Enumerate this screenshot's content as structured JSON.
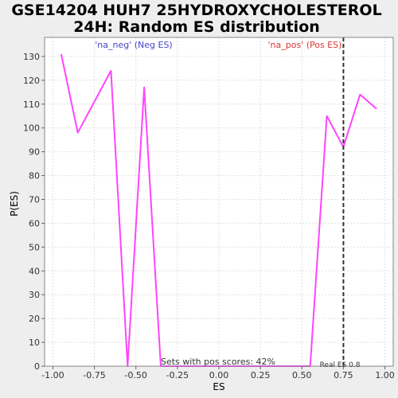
{
  "chart_data": {
    "type": "line",
    "title_line1": "GSE14204 HUH7 25HYDROXYCHOLESTEROL",
    "title_line2": "24H: Random ES distribution",
    "xlabel": "ES",
    "ylabel": "P(ES)",
    "xlim": [
      -1.05,
      1.05
    ],
    "ylim": [
      0,
      138
    ],
    "x_ticks": [
      -1.0,
      -0.75,
      -0.5,
      -0.25,
      0.0,
      0.25,
      0.5,
      0.75,
      1.0
    ],
    "x_tick_labels": [
      "-1.00",
      "-0.75",
      "-0.50",
      "-0.25",
      "0.00",
      "0.25",
      "0.50",
      "0.75",
      "1.00"
    ],
    "y_ticks": [
      0,
      10,
      20,
      30,
      40,
      50,
      60,
      70,
      80,
      90,
      100,
      110,
      120,
      130
    ],
    "y_tick_labels": [
      "0",
      "10",
      "20",
      "30",
      "40",
      "50",
      "60",
      "70",
      "80",
      "90",
      "100",
      "110",
      "120",
      "130"
    ],
    "grid": true,
    "series": [
      {
        "color": "#ff44ff",
        "x": [
          -0.95,
          -0.85,
          -0.65,
          -0.55,
          -0.45,
          -0.35,
          -0.25,
          0.45,
          0.55,
          0.65,
          0.75,
          0.85,
          0.95
        ],
        "y": [
          131,
          98,
          124,
          0,
          117,
          0,
          0,
          0,
          0,
          105,
          92,
          114,
          108
        ]
      }
    ],
    "real_es": 0.75,
    "real_es_label": "Real ES 0.8",
    "neg_label": "'na_neg' (Neg ES)",
    "pos_label": "'na_pos' (Pos ES)",
    "pos_scores_label": "Sets with pos scores: 42%",
    "colors": {
      "line": "#ff44ff",
      "neg_label": "#4444cc",
      "pos_label": "#dd3333",
      "real_es_line": "#333333",
      "grid": "#e0e0e0",
      "plot_bg": "#ffffff",
      "page_bg": "#eeeeee"
    }
  }
}
